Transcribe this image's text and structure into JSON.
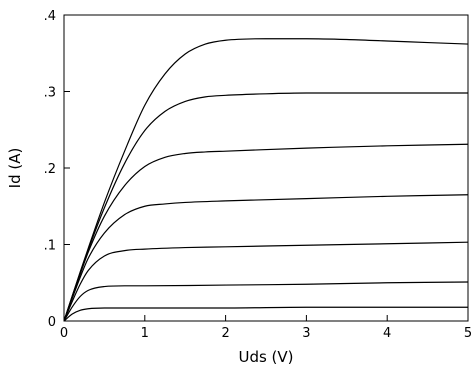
{
  "chart_data": {
    "type": "line",
    "title": "",
    "xlabel": "Uds (V)",
    "ylabel": "Id (A)",
    "xlim": [
      0,
      5
    ],
    "ylim": [
      0,
      0.4
    ],
    "x_ticks": [
      0,
      1,
      2,
      3,
      4,
      5
    ],
    "x_tick_labels": [
      "0",
      "1",
      "2",
      "3",
      "4",
      "5"
    ],
    "y_ticks": [
      0,
      0.1,
      0.2,
      0.3,
      0.4
    ],
    "y_tick_labels": [
      "0",
      ".1",
      ".2",
      ".3",
      ".4"
    ],
    "grid": false,
    "legend": "none",
    "line_color": "#000000",
    "series": [
      {
        "x": [
          0,
          0.1,
          0.2,
          0.3,
          0.5,
          0.75,
          1,
          2,
          3,
          4,
          5
        ],
        "y": [
          0,
          0.009,
          0.014,
          0.016,
          0.017,
          0.017,
          0.017,
          0.017,
          0.018,
          0.018,
          0.018
        ]
      },
      {
        "x": [
          0,
          0.1,
          0.2,
          0.3,
          0.5,
          0.75,
          1,
          2,
          3,
          4,
          5
        ],
        "y": [
          0,
          0.018,
          0.032,
          0.04,
          0.045,
          0.046,
          0.046,
          0.047,
          0.048,
          0.05,
          0.051
        ]
      },
      {
        "x": [
          0,
          0.1,
          0.2,
          0.3,
          0.5,
          0.75,
          1,
          1.5,
          2,
          3,
          4,
          5
        ],
        "y": [
          0,
          0.025,
          0.048,
          0.066,
          0.085,
          0.092,
          0.094,
          0.096,
          0.097,
          0.099,
          0.101,
          0.103
        ]
      },
      {
        "x": [
          0,
          0.1,
          0.2,
          0.3,
          0.5,
          0.75,
          1,
          1.25,
          1.5,
          2,
          3,
          4,
          5
        ],
        "y": [
          0,
          0.029,
          0.057,
          0.082,
          0.115,
          0.139,
          0.15,
          0.153,
          0.155,
          0.157,
          0.16,
          0.163,
          0.165
        ]
      },
      {
        "x": [
          0,
          0.1,
          0.2,
          0.3,
          0.5,
          0.75,
          1,
          1.25,
          1.5,
          1.75,
          2,
          3,
          4,
          5
        ],
        "y": [
          0,
          0.031,
          0.061,
          0.09,
          0.137,
          0.177,
          0.202,
          0.214,
          0.219,
          0.221,
          0.222,
          0.226,
          0.229,
          0.231
        ]
      },
      {
        "x": [
          0,
          0.1,
          0.2,
          0.3,
          0.5,
          0.75,
          1,
          1.25,
          1.5,
          1.75,
          2,
          2.5,
          3,
          4,
          5
        ],
        "y": [
          0,
          0.032,
          0.063,
          0.093,
          0.148,
          0.206,
          0.249,
          0.274,
          0.287,
          0.293,
          0.295,
          0.297,
          0.298,
          0.298,
          0.298
        ]
      },
      {
        "x": [
          0,
          0.1,
          0.2,
          0.3,
          0.5,
          0.75,
          1,
          1.25,
          1.5,
          1.75,
          2,
          2.5,
          3,
          3.5,
          4,
          4.5,
          5
        ],
        "y": [
          0,
          0.032,
          0.064,
          0.095,
          0.155,
          0.222,
          0.282,
          0.323,
          0.349,
          0.362,
          0.367,
          0.369,
          0.369,
          0.368,
          0.366,
          0.364,
          0.362
        ]
      }
    ]
  }
}
